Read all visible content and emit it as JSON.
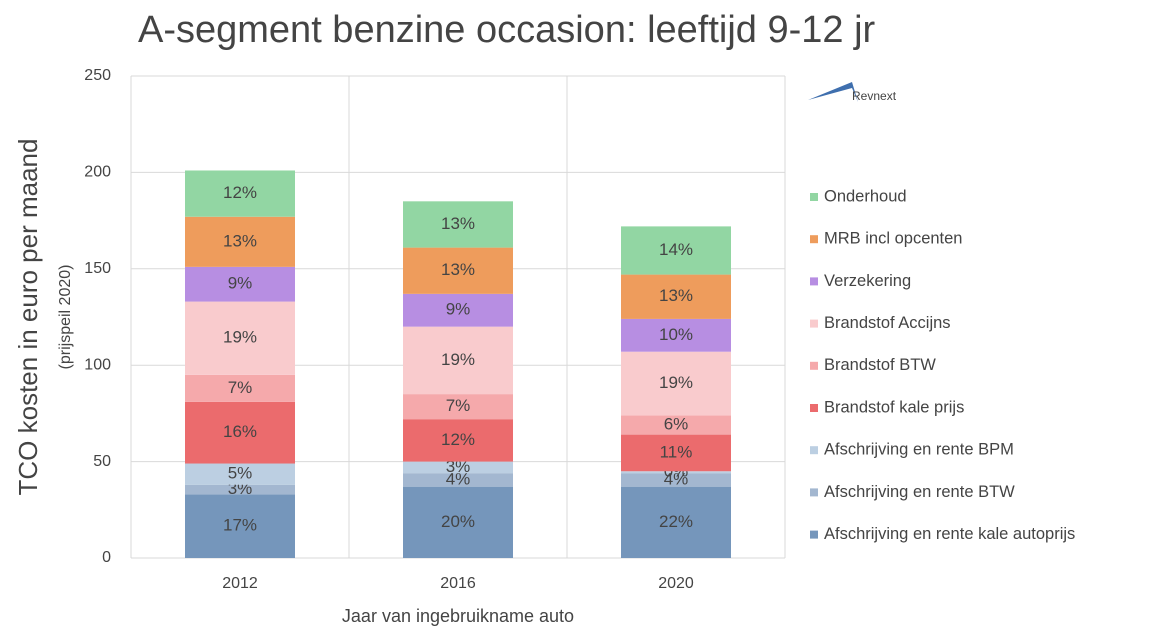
{
  "chart_data": {
    "type": "stacked_bar",
    "title": "A-segment benzine occasion: leeftijd 9-12 jr",
    "y_label": "TCO kosten in euro per maand",
    "y_sublabel": "(prijspeil 2020)",
    "x_label": "Jaar van ingebruikname auto",
    "logo_text": "Revnext",
    "categories": [
      "2012",
      "2016",
      "2020"
    ],
    "ylim": [
      0,
      250
    ],
    "yticks": [
      0,
      50,
      100,
      150,
      200,
      250
    ],
    "grid": true,
    "legend": "right",
    "series": [
      {
        "name": "Afschrijving en rente kale autoprijs",
        "color": "#7596bb",
        "values": [
          33,
          37,
          37
        ],
        "share_labels": [
          "17%",
          "20%",
          "22%"
        ]
      },
      {
        "name": "Afschrijving en rente BTW",
        "color": "#a3b7d0",
        "values": [
          5,
          7,
          7
        ],
        "share_labels": [
          "3%",
          "4%",
          "4%"
        ]
      },
      {
        "name": "Afschrijving en rente BPM",
        "color": "#bccfe2",
        "values": [
          11,
          6,
          1
        ],
        "share_labels": [
          "5%",
          "3%",
          "0%"
        ]
      },
      {
        "name": "Brandstof kale prijs",
        "color": "#eb6b6d",
        "values": [
          32,
          22,
          19
        ],
        "share_labels": [
          "16%",
          "12%",
          "11%"
        ]
      },
      {
        "name": "Brandstof BTW",
        "color": "#f5a9ab",
        "values": [
          14,
          13,
          10
        ],
        "share_labels": [
          "7%",
          "7%",
          "6%"
        ]
      },
      {
        "name": "Brandstof Accijns",
        "color": "#f9cbcd",
        "values": [
          38,
          35,
          33
        ],
        "share_labels": [
          "19%",
          "19%",
          "19%"
        ]
      },
      {
        "name": "Verzekering",
        "color": "#b78ee2",
        "values": [
          18,
          17,
          17
        ],
        "share_labels": [
          "9%",
          "9%",
          "10%"
        ]
      },
      {
        "name": "MRB incl opcenten",
        "color": "#ee9c5c",
        "values": [
          26,
          24,
          23
        ],
        "share_labels": [
          "13%",
          "13%",
          "13%"
        ]
      },
      {
        "name": "Onderhoud",
        "color": "#92d6a3",
        "values": [
          24,
          24,
          25
        ],
        "share_labels": [
          "12%",
          "13%",
          "14%"
        ]
      }
    ]
  }
}
